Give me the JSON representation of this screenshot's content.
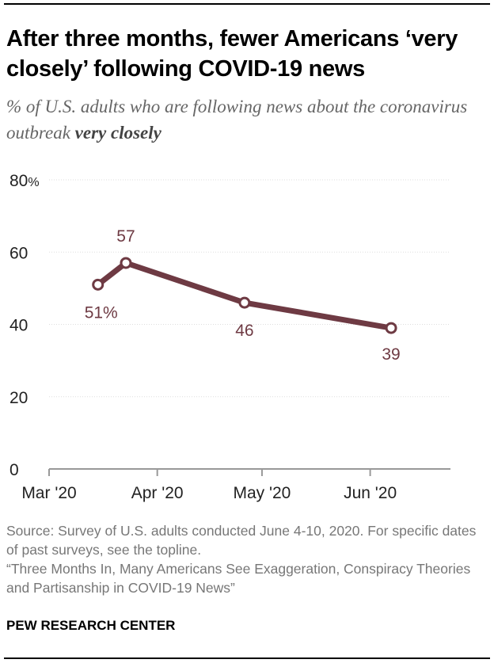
{
  "title": "After three months, fewer Americans ‘very closely’ following COVID-19 news",
  "subtitle_prefix": "% of U.S. adults who are following news about the coronavirus outbreak ",
  "subtitle_emphasis": "very closely",
  "chart_data": {
    "type": "line",
    "title": "After three months, fewer Americans ‘very closely’ following COVID-19 news",
    "ylabel": "",
    "xlabel": "",
    "ylim": [
      0,
      80
    ],
    "yticks": [
      0,
      20,
      40,
      60,
      80
    ],
    "ytick_labels": [
      "0",
      "20",
      "40",
      "60",
      "80%"
    ],
    "xlim": [
      "2020-03-01",
      "2020-06-24"
    ],
    "xticks": [
      "2020-03-01",
      "2020-04-01",
      "2020-05-01",
      "2020-06-01"
    ],
    "xtick_labels": [
      "Mar '20",
      "Apr '20",
      "May '20",
      "Jun '20"
    ],
    "grid": true,
    "color": "#6e3a43",
    "series": [
      {
        "x": [
          "2020-03-15",
          "2020-03-23",
          "2020-04-26",
          "2020-06-07"
        ],
        "values": [
          51,
          57,
          46,
          39
        ],
        "labels": [
          "51%",
          "57",
          "46",
          "39"
        ]
      }
    ]
  },
  "source": {
    "line1": "Source: Survey of U.S. adults conducted June 4-10, 2020. For specific dates of past surveys, see the topline.",
    "line2": "“Three Months In, Many Americans See Exaggeration, Conspiracy Theories and Partisanship in COVID-19 News”"
  },
  "brand": "PEW RESEARCH CENTER"
}
